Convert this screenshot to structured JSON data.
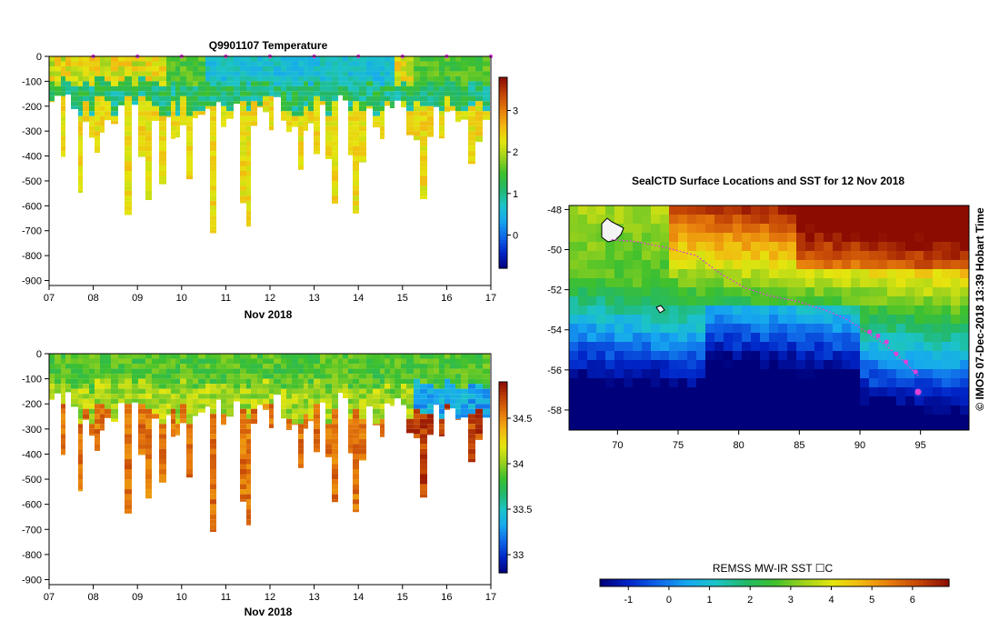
{
  "colors": {
    "scale": [
      "#00007a",
      "#0025c8",
      "#0f66e8",
      "#16a8f0",
      "#1cc4c6",
      "#22b86a",
      "#3ec02e",
      "#9ed21c",
      "#e4e60e",
      "#f2b610",
      "#e67a0c",
      "#c24406",
      "#8c0c02"
    ],
    "track": "#e040d8",
    "land": "#f4f4f4"
  },
  "chart_data": [
    {
      "type": "heatmap",
      "id": "temperature-section",
      "title": "Q9901107  Temperature",
      "xlabel": "Nov 2018",
      "xticks": [
        "07",
        "08",
        "09",
        "10",
        "11",
        "12",
        "13",
        "14",
        "15",
        "16",
        "17"
      ],
      "xlim": [
        7,
        17
      ],
      "ylim": [
        -920,
        0
      ],
      "yticks": [
        0,
        -100,
        -200,
        -300,
        -400,
        -500,
        -600,
        -700,
        -800,
        -900
      ],
      "colorbar": {
        "range": [
          -0.8,
          3.8
        ],
        "ticks": [
          0,
          1,
          2,
          3
        ]
      },
      "surface_markers_day": [
        8,
        9,
        10,
        11,
        12,
        13,
        14,
        15,
        16,
        17
      ]
    },
    {
      "type": "heatmap",
      "id": "salinity-section",
      "title": "",
      "xlabel": "Nov 2018",
      "xticks": [
        "07",
        "08",
        "09",
        "10",
        "11",
        "12",
        "13",
        "14",
        "15",
        "16",
        "17"
      ],
      "xlim": [
        7,
        17
      ],
      "ylim": [
        -920,
        0
      ],
      "yticks": [
        0,
        -100,
        -200,
        -300,
        -400,
        -500,
        -600,
        -700,
        -800,
        -900
      ],
      "colorbar": {
        "range": [
          32.8,
          34.9
        ],
        "ticks": [
          33,
          33.5,
          34,
          34.5
        ]
      }
    },
    {
      "type": "heatmap",
      "id": "sst-map",
      "title": "SealCTD Surface Locations and SST for 12 Nov 2018",
      "lon_range": [
        66,
        99
      ],
      "lat_range": [
        -59,
        -47.8
      ],
      "xticks": [
        70,
        75,
        80,
        85,
        90,
        95
      ],
      "yticks": [
        -48,
        -50,
        -52,
        -54,
        -56,
        -58
      ],
      "track_lon": [
        69.5,
        71.5,
        74,
        76.5,
        78.5,
        80.5,
        82.5,
        85,
        87.5,
        89,
        90.5,
        92,
        93.5,
        94.8
      ],
      "track_lat": [
        -49.5,
        -49.6,
        -49.9,
        -50.3,
        -51.2,
        -51.9,
        -52.3,
        -52.6,
        -53.1,
        -53.5,
        -54.1,
        -54.7,
        -55.5,
        -56.3
      ],
      "surface_points_lon": [
        90.8,
        91.5,
        92.2,
        93.0,
        93.8,
        94.6,
        94.8
      ],
      "surface_points_lat": [
        -54.1,
        -54.3,
        -54.6,
        -55.2,
        -55.6,
        -56.1,
        -57.1
      ],
      "colorbar": {
        "label": "REMSS MW-IR SST ☐C",
        "range": [
          -1.7,
          6.9
        ],
        "ticks": [
          -1,
          0,
          1,
          2,
          3,
          4,
          5,
          6
        ]
      }
    }
  ],
  "side_label": "©  IMOS 07-Dec-2018 13:39 Hobart Time"
}
